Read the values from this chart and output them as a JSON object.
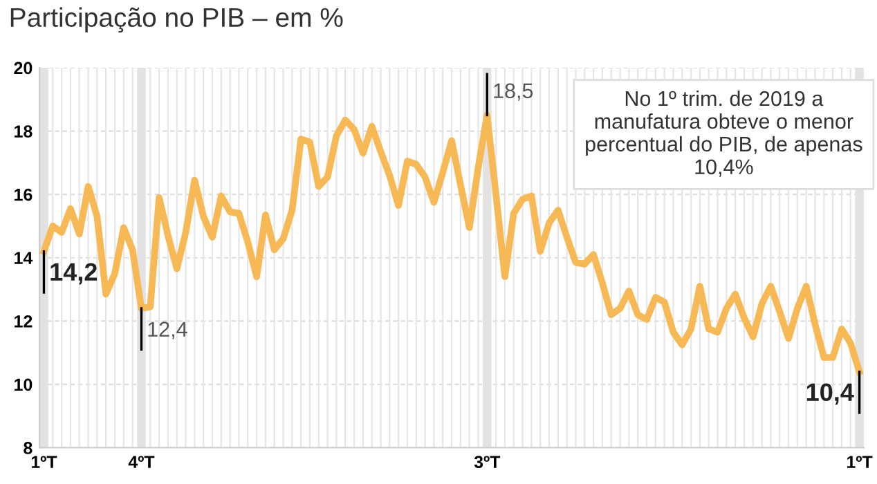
{
  "chart_data": {
    "type": "line",
    "subtitle": "Participação no PIB – em %",
    "categories": [
      "1ºT",
      null,
      null,
      null,
      null,
      null,
      null,
      null,
      null,
      null,
      null,
      "4ºT",
      null,
      null,
      null,
      null,
      null,
      null,
      null,
      null,
      null,
      null,
      null,
      null,
      null,
      null,
      null,
      null,
      null,
      null,
      null,
      null,
      null,
      null,
      null,
      null,
      null,
      null,
      null,
      null,
      null,
      null,
      null,
      null,
      null,
      null,
      null,
      null,
      null,
      null,
      "3ºT",
      null,
      null,
      null,
      null,
      null,
      null,
      null,
      null,
      null,
      null,
      null,
      null,
      null,
      null,
      null,
      null,
      null,
      null,
      null,
      null,
      null,
      null,
      null,
      null,
      null,
      null,
      null,
      null,
      null,
      null,
      null,
      null,
      null,
      null,
      null,
      null,
      null,
      null,
      null,
      null,
      null,
      "1ºT"
    ],
    "series": [
      {
        "color": "#f7b955",
        "values": [
          14.2,
          15.0,
          14.8,
          15.55,
          14.75,
          16.25,
          15.3,
          12.85,
          13.5,
          14.95,
          14.25,
          12.4,
          12.45,
          15.9,
          14.7,
          13.65,
          14.8,
          16.45,
          15.3,
          14.65,
          15.95,
          15.45,
          15.4,
          14.5,
          13.4,
          15.35,
          14.25,
          14.6,
          15.5,
          17.75,
          17.65,
          16.25,
          16.55,
          17.85,
          18.35,
          18.05,
          17.3,
          18.15,
          17.35,
          16.6,
          15.65,
          17.05,
          16.95,
          16.55,
          15.75,
          16.7,
          17.7,
          16.3,
          14.95,
          16.85,
          18.5,
          16.0,
          13.4,
          15.4,
          15.85,
          15.95,
          14.2,
          15.1,
          15.5,
          14.65,
          13.85,
          13.8,
          14.1,
          13.2,
          12.2,
          12.4,
          12.95,
          12.2,
          12.05,
          12.75,
          12.6,
          11.65,
          11.25,
          11.75,
          13.1,
          11.75,
          11.65,
          12.4,
          12.85,
          12.1,
          11.5,
          12.55,
          13.1,
          12.3,
          11.45,
          12.4,
          13.1,
          11.9,
          10.85,
          10.85,
          11.75,
          11.3,
          10.4
        ],
        "value_labels": [
          "14,2",
          null,
          null,
          null,
          null,
          null,
          null,
          null,
          null,
          null,
          null,
          "12,4",
          null,
          null,
          null,
          null,
          null,
          null,
          null,
          null,
          null,
          null,
          null,
          null,
          null,
          null,
          null,
          null,
          null,
          null,
          null,
          null,
          null,
          null,
          null,
          null,
          null,
          null,
          null,
          null,
          null,
          null,
          null,
          null,
          null,
          null,
          null,
          null,
          null,
          null,
          "18,5",
          null,
          null,
          null,
          null,
          null,
          null,
          null,
          null,
          null,
          null,
          null,
          null,
          null,
          null,
          null,
          null,
          null,
          null,
          null,
          null,
          null,
          null,
          null,
          null,
          null,
          null,
          null,
          null,
          null,
          null,
          null,
          null,
          null,
          null,
          null,
          null,
          null,
          null,
          null,
          null,
          null,
          "10,4"
        ]
      }
    ],
    "ylim": [
      8,
      20
    ],
    "yticks": [
      8,
      10,
      12,
      14,
      16,
      18,
      20
    ],
    "grid": true,
    "marker": "none",
    "line_style": "solid",
    "annotations": [
      "No 1º trim. de 2019 a manufatura obteve o menor percentual do PIB, de apenas 10,4%"
    ]
  }
}
